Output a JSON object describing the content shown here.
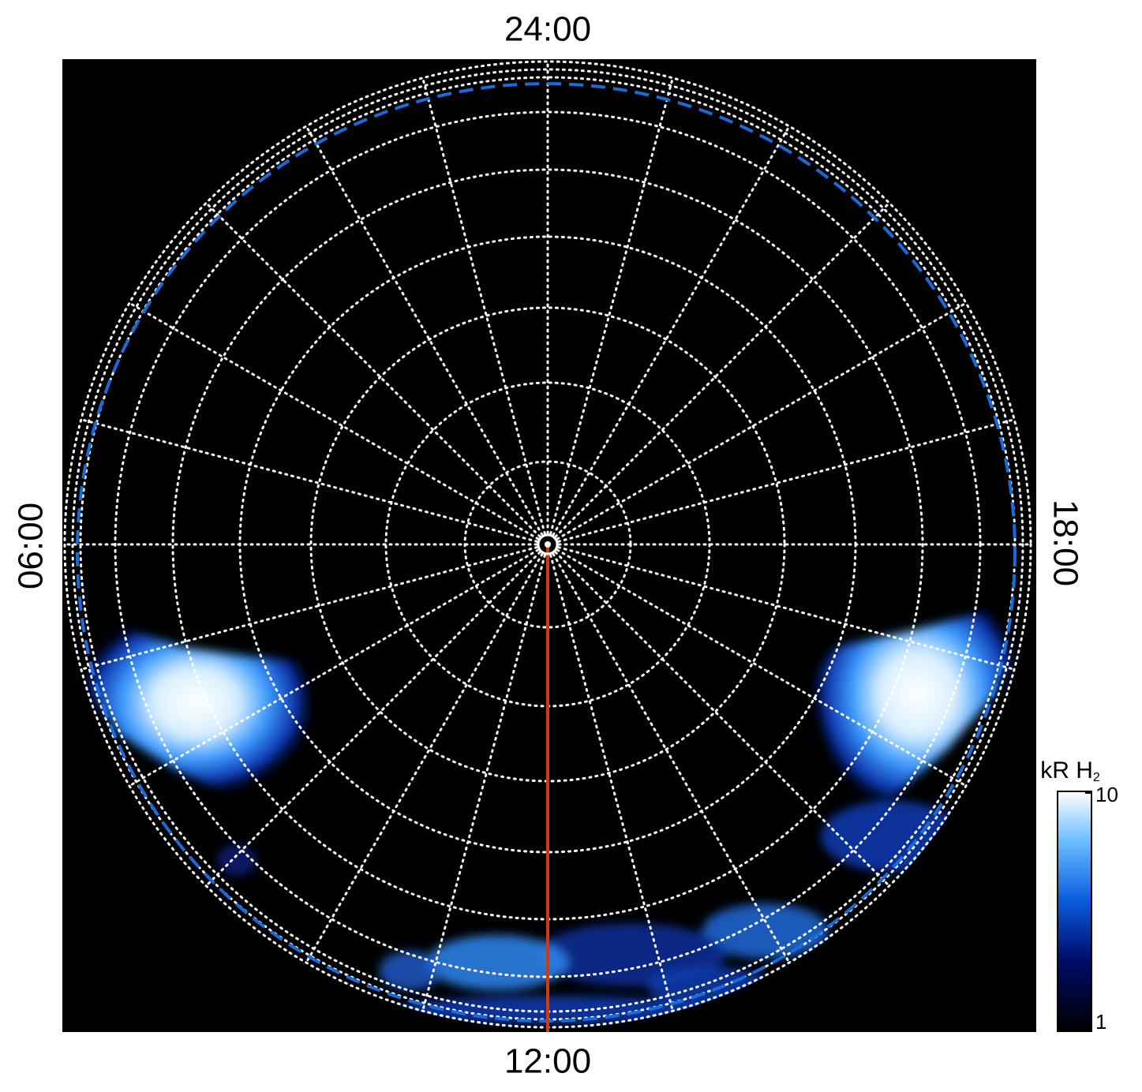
{
  "labels": {
    "top": "24:00",
    "bottom": "12:00",
    "left": "06:00",
    "right": "18:00"
  },
  "colorbar": {
    "title": "kR H",
    "title_subscript": "2",
    "ticks": [
      1,
      10
    ],
    "log": true
  }
}
